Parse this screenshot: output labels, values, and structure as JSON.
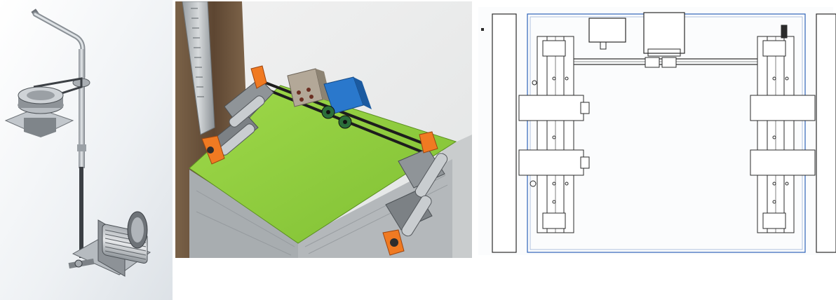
{
  "figure": {
    "panels": [
      {
        "id": "cad-elevator-mechanism-iso"
      },
      {
        "id": "rendered-car-top-guide-roller-belt"
      },
      {
        "id": "technical-drawing-top-view"
      }
    ]
  },
  "colors": {
    "metal_light": "#d3d6da",
    "metal_dark": "#6d7278",
    "car_top_green": "#8ccc3a",
    "roller_orange": "#f07a22",
    "motor_blue": "#2a78cc",
    "belt_black": "#1d1d1d",
    "wood_brown": "#7a6248",
    "drawing_line": "#2b2b2b",
    "drawing_frame_blue": "#2e63b8"
  },
  "icons": [
    "gear-icon"
  ]
}
